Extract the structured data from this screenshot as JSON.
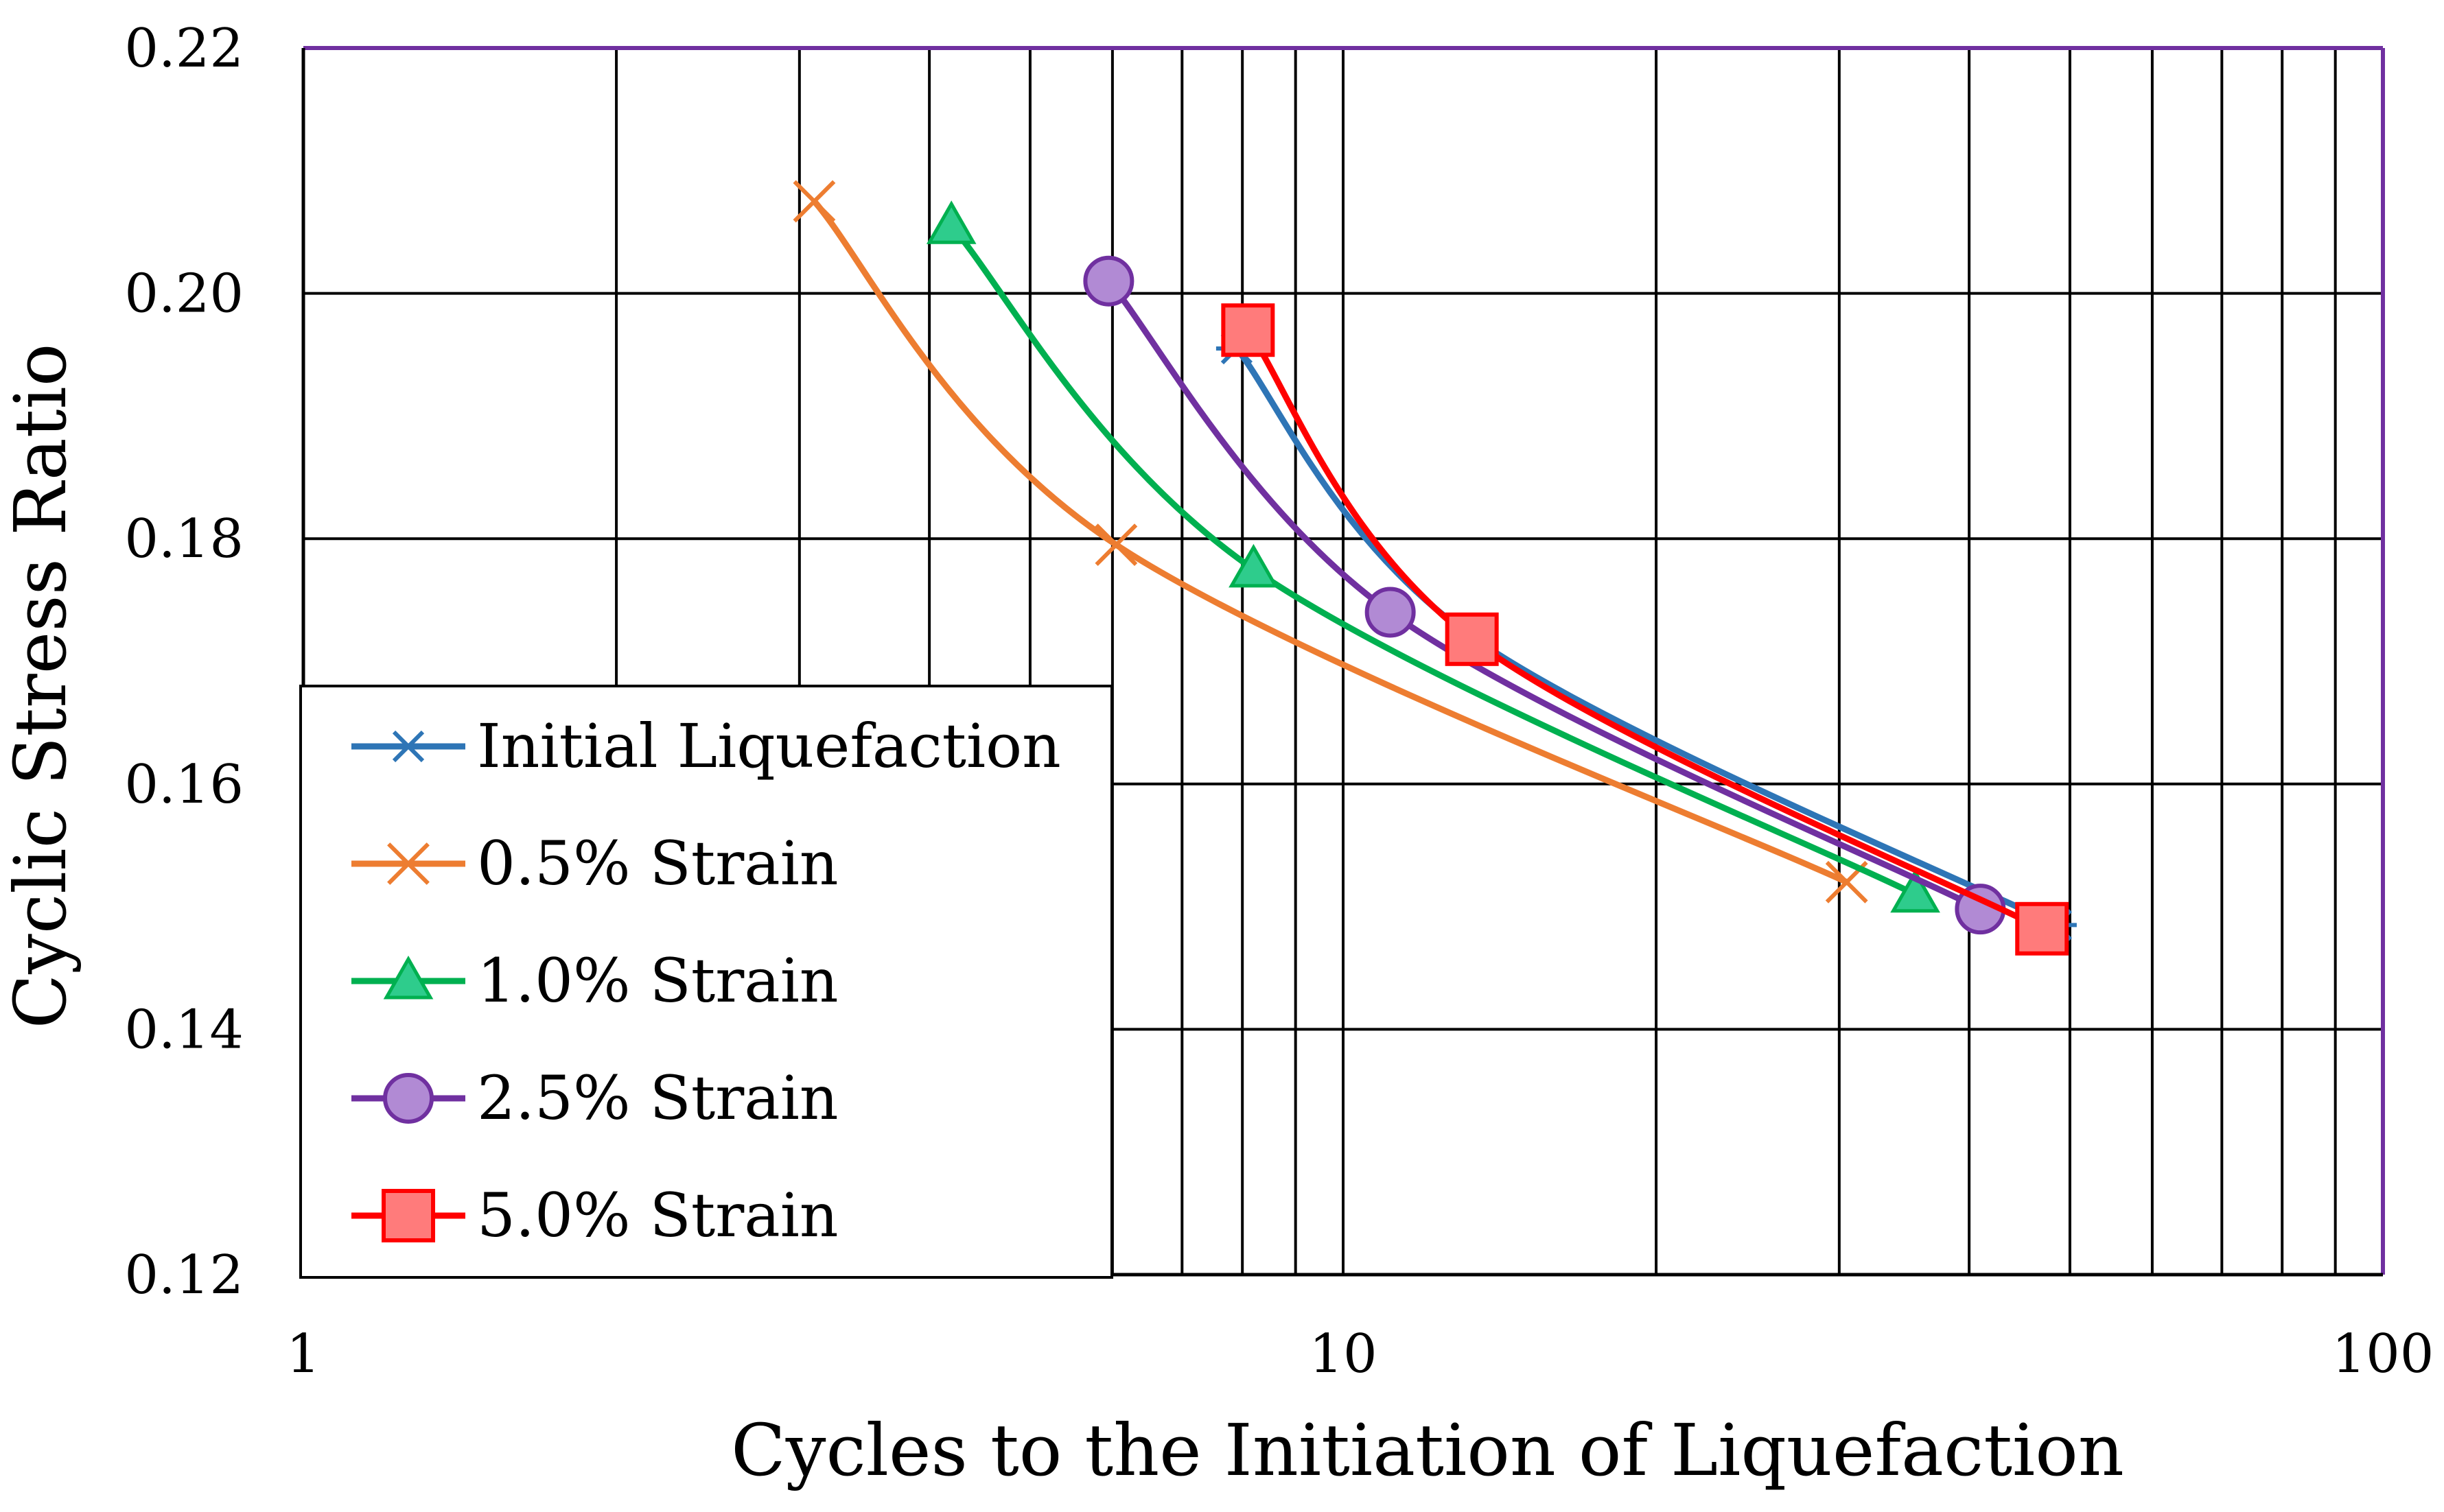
{
  "chart_data": {
    "type": "line",
    "title": "",
    "xlabel": "Cycles to the Initiation of Liquefaction",
    "ylabel": "Cyclic Stress Ratio",
    "xscale": "log",
    "xlim": [
      1,
      100
    ],
    "ylim": [
      0.12,
      0.22
    ],
    "x_ticks": [
      1,
      10,
      100
    ],
    "x_tick_labels": [
      "1",
      "10",
      "100"
    ],
    "y_ticks": [
      0.12,
      0.14,
      0.16,
      0.18,
      0.2,
      0.22
    ],
    "y_tick_labels": [
      "0.12",
      "0.14",
      "0.16",
      "0.18",
      "0.20",
      "0.22"
    ],
    "grid": true,
    "legend_position": "bottom-left",
    "plot_border_color": "#7030a0",
    "series": [
      {
        "name": "Initial Liquefaction",
        "color": "#2e75b6",
        "marker": "star",
        "points": [
          [
            7.9,
            0.1955
          ],
          [
            13.3,
            0.172
          ],
          [
            48.5,
            0.1485
          ]
        ]
      },
      {
        "name": "0.5% Strain",
        "color": "#ed7d31",
        "marker": "x",
        "points": [
          [
            3.1,
            0.2075
          ],
          [
            6.05,
            0.1795
          ],
          [
            30.5,
            0.152
          ]
        ]
      },
      {
        "name": "1.0% Strain",
        "color": "#00b050",
        "marker": "triangle",
        "points": [
          [
            4.2,
            0.2055
          ],
          [
            8.2,
            0.1775
          ],
          [
            35.5,
            0.151
          ]
        ]
      },
      {
        "name": "2.5% Strain",
        "color": "#7030a0",
        "marker": "circle",
        "points": [
          [
            5.95,
            0.201
          ],
          [
            11.1,
            0.174
          ],
          [
            41.0,
            0.1498
          ]
        ]
      },
      {
        "name": "5.0% Strain",
        "color": "#ff0000",
        "marker": "square",
        "points": [
          [
            8.1,
            0.197
          ],
          [
            13.3,
            0.1718
          ],
          [
            47.0,
            0.1482
          ]
        ]
      }
    ]
  }
}
